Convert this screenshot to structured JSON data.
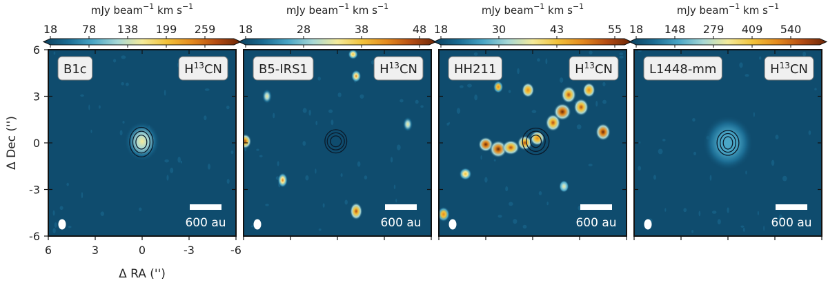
{
  "chart_data": [
    {
      "type": "heatmap",
      "panel_label": "B1c",
      "line_label": "H¹³CN",
      "colorbar": {
        "unit_label": "mJy beam⁻¹ km s⁻¹",
        "ticks": [
          "18",
          "78",
          "138",
          "199",
          "259"
        ]
      },
      "xlabel": "Δ RA ('')",
      "ylabel": "Δ Dec ('')",
      "xticks": [
        "6",
        "3",
        "0",
        "-3",
        "-6"
      ],
      "yticks": [
        "6",
        "3",
        "0",
        "-3",
        "-6"
      ],
      "xlim": [
        6,
        -6
      ],
      "ylim": [
        -6,
        6
      ],
      "scalebar_label": "600 au",
      "peak": {
        "x": 0.0,
        "y": 0.1
      },
      "emission_blobs": [
        {
          "x": 0.0,
          "y": 0.1,
          "rx": 0.35,
          "ry": 0.45,
          "level": 1.0
        },
        {
          "x": 0.0,
          "y": 0.1,
          "rx": 0.7,
          "ry": 0.8,
          "level": 0.45
        }
      ],
      "contours": [
        {
          "x": 0.05,
          "y": 0.05,
          "rx": 0.35,
          "ry": 0.45
        },
        {
          "x": 0.05,
          "y": 0.05,
          "rx": 0.55,
          "ry": 0.7
        },
        {
          "x": 0.05,
          "y": 0.05,
          "rx": 0.75,
          "ry": 0.95
        }
      ]
    },
    {
      "type": "heatmap",
      "panel_label": "B5-IRS1",
      "line_label": "H¹³CN",
      "colorbar": {
        "unit_label": "mJy beam⁻¹ km s⁻¹",
        "ticks": [
          "18",
          "28",
          "38",
          "48"
        ]
      },
      "xlim": [
        6,
        -6
      ],
      "ylim": [
        -6,
        6
      ],
      "scalebar_label": "600 au",
      "emission_blobs": [
        {
          "x": 5.9,
          "y": 0.1,
          "rx": 0.25,
          "ry": 0.3,
          "level": 0.9
        },
        {
          "x": 3.5,
          "y": -2.4,
          "rx": 0.2,
          "ry": 0.3,
          "level": 0.7
        },
        {
          "x": -1.2,
          "y": -4.4,
          "rx": 0.25,
          "ry": 0.35,
          "level": 0.9
        },
        {
          "x": -1.2,
          "y": 4.3,
          "rx": 0.2,
          "ry": 0.25,
          "level": 0.7
        },
        {
          "x": -1.0,
          "y": 5.7,
          "rx": 0.2,
          "ry": 0.2,
          "level": 0.6
        },
        {
          "x": 4.5,
          "y": 3.0,
          "rx": 0.2,
          "ry": 0.3,
          "level": 0.45
        },
        {
          "x": -4.5,
          "y": 1.2,
          "rx": 0.2,
          "ry": 0.3,
          "level": 0.45
        },
        {
          "x": 2.0,
          "y": 4.5,
          "rx": 0.15,
          "ry": 0.2,
          "level": 0.35
        }
      ],
      "contours": [
        {
          "x": 0.1,
          "y": 0.1,
          "rx": 0.35,
          "ry": 0.35
        },
        {
          "x": 0.1,
          "y": 0.1,
          "rx": 0.55,
          "ry": 0.55
        },
        {
          "x": 0.1,
          "y": 0.1,
          "rx": 0.7,
          "ry": 0.75
        }
      ]
    },
    {
      "type": "heatmap",
      "panel_label": "HH211",
      "line_label": "H¹³CN",
      "colorbar": {
        "unit_label": "mJy beam⁻¹ km s⁻¹",
        "ticks": [
          "18",
          "30",
          "43",
          "55"
        ]
      },
      "xlim": [
        6,
        -6
      ],
      "ylim": [
        -6,
        6
      ],
      "scalebar_label": "600 au",
      "emission_blobs": [
        {
          "x": 3.0,
          "y": -0.1,
          "rx": 0.3,
          "ry": 0.3,
          "level": 1.0
        },
        {
          "x": 2.2,
          "y": -0.4,
          "rx": 0.35,
          "ry": 0.35,
          "level": 0.95
        },
        {
          "x": 1.4,
          "y": -0.3,
          "rx": 0.35,
          "ry": 0.3,
          "level": 0.9
        },
        {
          "x": 0.5,
          "y": 0.0,
          "rx": 0.3,
          "ry": 0.3,
          "level": 0.85
        },
        {
          "x": -0.3,
          "y": 0.3,
          "rx": 0.3,
          "ry": 0.3,
          "level": 0.8
        },
        {
          "x": -1.3,
          "y": 1.3,
          "rx": 0.3,
          "ry": 0.35,
          "level": 0.85
        },
        {
          "x": -1.9,
          "y": 2.0,
          "rx": 0.35,
          "ry": 0.35,
          "level": 1.0
        },
        {
          "x": -2.3,
          "y": 3.1,
          "rx": 0.3,
          "ry": 0.35,
          "level": 0.9
        },
        {
          "x": -3.1,
          "y": 2.3,
          "rx": 0.3,
          "ry": 0.35,
          "level": 0.85
        },
        {
          "x": -3.6,
          "y": 3.4,
          "rx": 0.25,
          "ry": 0.3,
          "level": 0.8
        },
        {
          "x": -4.5,
          "y": 0.7,
          "rx": 0.3,
          "ry": 0.35,
          "level": 1.0
        },
        {
          "x": 0.3,
          "y": 3.4,
          "rx": 0.25,
          "ry": 0.3,
          "level": 0.8
        },
        {
          "x": 2.2,
          "y": 3.6,
          "rx": 0.2,
          "ry": 0.25,
          "level": 0.75
        },
        {
          "x": 5.7,
          "y": -4.6,
          "rx": 0.25,
          "ry": 0.3,
          "level": 0.75
        },
        {
          "x": 4.3,
          "y": -2.0,
          "rx": 0.25,
          "ry": 0.25,
          "level": 0.6
        },
        {
          "x": -2.0,
          "y": -2.8,
          "rx": 0.2,
          "ry": 0.25,
          "level": 0.5
        }
      ],
      "contours": [
        {
          "x": -0.2,
          "y": 0.1,
          "rx": 0.35,
          "ry": 0.4
        },
        {
          "x": -0.2,
          "y": 0.1,
          "rx": 0.6,
          "ry": 0.65
        },
        {
          "x": -0.2,
          "y": 0.1,
          "rx": 0.85,
          "ry": 0.85
        }
      ]
    },
    {
      "type": "heatmap",
      "panel_label": "L1448-mm",
      "line_label": "H¹³CN",
      "colorbar": {
        "unit_label": "mJy beam⁻¹ km s⁻¹",
        "ticks": [
          "18",
          "148",
          "279",
          "409",
          "540"
        ]
      },
      "xlim": [
        6,
        -6
      ],
      "ylim": [
        -6,
        6
      ],
      "scalebar_label": "600 au",
      "emission_blobs": [
        {
          "x": 0.0,
          "y": 0.0,
          "rx": 0.35,
          "ry": 0.45,
          "level": 1.0
        },
        {
          "x": 0.0,
          "y": 0.0,
          "rx": 0.6,
          "ry": 0.7,
          "level": 0.6
        },
        {
          "x": 0.0,
          "y": 0.0,
          "rx": 1.0,
          "ry": 1.1,
          "level": 0.25
        }
      ],
      "contours": [
        {
          "x": 0.0,
          "y": 0.0,
          "rx": 0.3,
          "ry": 0.4
        },
        {
          "x": 0.0,
          "y": 0.0,
          "rx": 0.5,
          "ry": 0.6
        },
        {
          "x": 0.0,
          "y": 0.0,
          "rx": 0.7,
          "ry": 0.8
        }
      ]
    }
  ],
  "colors": {
    "background": "#0f4c6e",
    "colormap": [
      "#0b3f5c",
      "#1b6c93",
      "#4aa6c6",
      "#a7d8d6",
      "#f4ea9a",
      "#f2c23a",
      "#e48a1e",
      "#b54c12",
      "#6b2607"
    ],
    "contour": "#0a1a2a",
    "badge_fill": "#f0f0f0"
  }
}
